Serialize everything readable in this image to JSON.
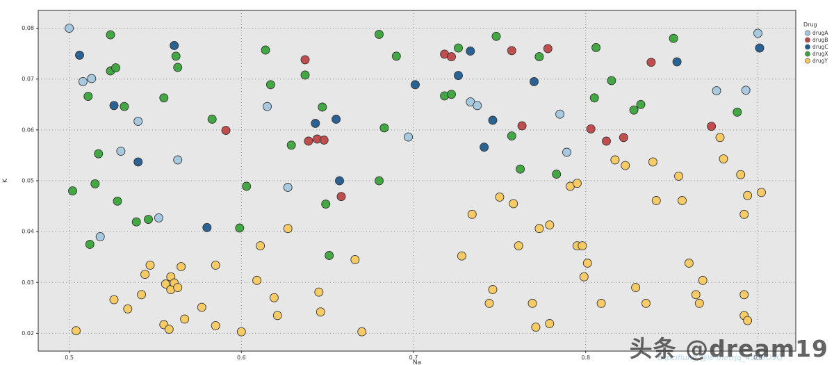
{
  "chart_data": {
    "type": "scatter",
    "title": "",
    "xlabel": "Na",
    "ylabel": "K",
    "xlim": [
      0.482,
      0.922
    ],
    "ylim": [
      0.0165,
      0.0835
    ],
    "xticks": [
      0.5,
      0.6,
      0.7,
      0.8,
      0.9
    ],
    "xtick_labels": [
      "0.5",
      "0.6",
      "0.7",
      "0.8",
      "0.9"
    ],
    "yticks": [
      0.02,
      0.03,
      0.04,
      0.05,
      0.06,
      0.07,
      0.08
    ],
    "ytick_labels": [
      "0.02",
      "0.03",
      "0.04",
      "0.05",
      "0.06",
      "0.07",
      "0.08"
    ],
    "grid": "dotted",
    "plot_bg": "#e7e7e7",
    "grid_color": "#8c8c8c",
    "frame_color": "#2b2b2b",
    "tick_text_color": "#333333",
    "marker": {
      "radius": 6,
      "stroke": "#333333"
    },
    "legend": {
      "title": "Drug",
      "position": "right-top"
    },
    "series": [
      {
        "name": "drugA",
        "color": "#a3c8e0",
        "points": [
          [
            0.5,
            0.08
          ],
          [
            0.508,
            0.0695
          ],
          [
            0.513,
            0.0701
          ],
          [
            0.518,
            0.039
          ],
          [
            0.53,
            0.0558
          ],
          [
            0.54,
            0.0617
          ],
          [
            0.552,
            0.0427
          ],
          [
            0.563,
            0.0541
          ],
          [
            0.615,
            0.0646
          ],
          [
            0.627,
            0.0487
          ],
          [
            0.697,
            0.0586
          ],
          [
            0.733,
            0.0655
          ],
          [
            0.737,
            0.0648
          ],
          [
            0.785,
            0.0631
          ],
          [
            0.789,
            0.0556
          ],
          [
            0.876,
            0.0677
          ],
          [
            0.893,
            0.0678
          ],
          [
            0.9,
            0.079
          ]
        ]
      },
      {
        "name": "drugB",
        "color": "#bf4646",
        "points": [
          [
            0.591,
            0.0599
          ],
          [
            0.637,
            0.0738
          ],
          [
            0.639,
            0.0578
          ],
          [
            0.644,
            0.0582
          ],
          [
            0.648,
            0.058
          ],
          [
            0.658,
            0.0469
          ],
          [
            0.718,
            0.0749
          ],
          [
            0.722,
            0.0744
          ],
          [
            0.757,
            0.0756
          ],
          [
            0.778,
            0.076
          ],
          [
            0.763,
            0.0608
          ],
          [
            0.803,
            0.0602
          ],
          [
            0.812,
            0.0578
          ],
          [
            0.822,
            0.0585
          ],
          [
            0.838,
            0.0733
          ],
          [
            0.873,
            0.0607
          ]
        ]
      },
      {
        "name": "drugC",
        "color": "#1f5b8e",
        "points": [
          [
            0.506,
            0.0747
          ],
          [
            0.526,
            0.0648
          ],
          [
            0.54,
            0.0537
          ],
          [
            0.561,
            0.0766
          ],
          [
            0.58,
            0.0408
          ],
          [
            0.643,
            0.0613
          ],
          [
            0.655,
            0.0621
          ],
          [
            0.657,
            0.05
          ],
          [
            0.701,
            0.0689
          ],
          [
            0.726,
            0.0707
          ],
          [
            0.733,
            0.0755
          ],
          [
            0.746,
            0.0619
          ],
          [
            0.741,
            0.0566
          ],
          [
            0.77,
            0.0695
          ],
          [
            0.853,
            0.0734
          ],
          [
            0.901,
            0.0761
          ]
        ]
      },
      {
        "name": "drugX",
        "color": "#3aa33a",
        "points": [
          [
            0.502,
            0.048
          ],
          [
            0.511,
            0.0666
          ],
          [
            0.512,
            0.0375
          ],
          [
            0.515,
            0.0494
          ],
          [
            0.517,
            0.0553
          ],
          [
            0.524,
            0.0716
          ],
          [
            0.527,
            0.0722
          ],
          [
            0.524,
            0.0787
          ],
          [
            0.528,
            0.046
          ],
          [
            0.532,
            0.0646
          ],
          [
            0.539,
            0.0419
          ],
          [
            0.546,
            0.0424
          ],
          [
            0.555,
            0.0663
          ],
          [
            0.562,
            0.0745
          ],
          [
            0.563,
            0.0723
          ],
          [
            0.583,
            0.0621
          ],
          [
            0.599,
            0.0407
          ],
          [
            0.603,
            0.0489
          ],
          [
            0.614,
            0.0757
          ],
          [
            0.617,
            0.0689
          ],
          [
            0.629,
            0.057
          ],
          [
            0.637,
            0.0708
          ],
          [
            0.647,
            0.0645
          ],
          [
            0.649,
            0.0454
          ],
          [
            0.651,
            0.0353
          ],
          [
            0.68,
            0.0788
          ],
          [
            0.683,
            0.0604
          ],
          [
            0.68,
            0.05
          ],
          [
            0.69,
            0.0745
          ],
          [
            0.718,
            0.0667
          ],
          [
            0.722,
            0.067
          ],
          [
            0.726,
            0.0761
          ],
          [
            0.748,
            0.0784
          ],
          [
            0.757,
            0.0588
          ],
          [
            0.762,
            0.0523
          ],
          [
            0.773,
            0.0744
          ],
          [
            0.783,
            0.0513
          ],
          [
            0.806,
            0.0762
          ],
          [
            0.805,
            0.0663
          ],
          [
            0.815,
            0.0697
          ],
          [
            0.828,
            0.0639
          ],
          [
            0.832,
            0.065
          ],
          [
            0.851,
            0.078
          ],
          [
            0.888,
            0.0635
          ]
        ]
      },
      {
        "name": "drugY",
        "color": "#f9c95f",
        "points": [
          [
            0.504,
            0.0205
          ],
          [
            0.526,
            0.0266
          ],
          [
            0.534,
            0.0248
          ],
          [
            0.542,
            0.0276
          ],
          [
            0.544,
            0.0316
          ],
          [
            0.547,
            0.0334
          ],
          [
            0.555,
            0.0217
          ],
          [
            0.556,
            0.0297
          ],
          [
            0.558,
            0.0208
          ],
          [
            0.559,
            0.0311
          ],
          [
            0.559,
            0.0286
          ],
          [
            0.561,
            0.0299
          ],
          [
            0.563,
            0.029
          ],
          [
            0.565,
            0.0331
          ],
          [
            0.567,
            0.0228
          ],
          [
            0.577,
            0.0251
          ],
          [
            0.585,
            0.0334
          ],
          [
            0.585,
            0.0215
          ],
          [
            0.6,
            0.0203
          ],
          [
            0.609,
            0.0304
          ],
          [
            0.611,
            0.0372
          ],
          [
            0.619,
            0.027
          ],
          [
            0.621,
            0.0235
          ],
          [
            0.627,
            0.0406
          ],
          [
            0.645,
            0.0281
          ],
          [
            0.646,
            0.0242
          ],
          [
            0.666,
            0.0345
          ],
          [
            0.67,
            0.0203
          ],
          [
            0.728,
            0.0352
          ],
          [
            0.734,
            0.0434
          ],
          [
            0.744,
            0.0259
          ],
          [
            0.746,
            0.0286
          ],
          [
            0.75,
            0.0468
          ],
          [
            0.758,
            0.0455
          ],
          [
            0.761,
            0.0372
          ],
          [
            0.769,
            0.0259
          ],
          [
            0.771,
            0.0212
          ],
          [
            0.779,
            0.0219
          ],
          [
            0.773,
            0.0406
          ],
          [
            0.779,
            0.0413
          ],
          [
            0.791,
            0.0489
          ],
          [
            0.795,
            0.0495
          ],
          [
            0.795,
            0.0372
          ],
          [
            0.798,
            0.0372
          ],
          [
            0.799,
            0.0311
          ],
          [
            0.801,
            0.0338
          ],
          [
            0.809,
            0.0259
          ],
          [
            0.817,
            0.0541
          ],
          [
            0.823,
            0.053
          ],
          [
            0.829,
            0.029
          ],
          [
            0.835,
            0.0259
          ],
          [
            0.839,
            0.0537
          ],
          [
            0.841,
            0.0461
          ],
          [
            0.854,
            0.0509
          ],
          [
            0.856,
            0.0461
          ],
          [
            0.86,
            0.0338
          ],
          [
            0.864,
            0.0276
          ],
          [
            0.866,
            0.0259
          ],
          [
            0.868,
            0.0304
          ],
          [
            0.878,
            0.0585
          ],
          [
            0.88,
            0.0543
          ],
          [
            0.89,
            0.0512
          ],
          [
            0.892,
            0.0434
          ],
          [
            0.894,
            0.0471
          ],
          [
            0.892,
            0.0276
          ],
          [
            0.892,
            0.0235
          ],
          [
            0.894,
            0.0225
          ],
          [
            0.902,
            0.0477
          ]
        ]
      }
    ]
  },
  "watermarks": {
    "main": "头条 @dream19",
    "faint": "dspciflung @le metrjq_45U9O9O"
  }
}
